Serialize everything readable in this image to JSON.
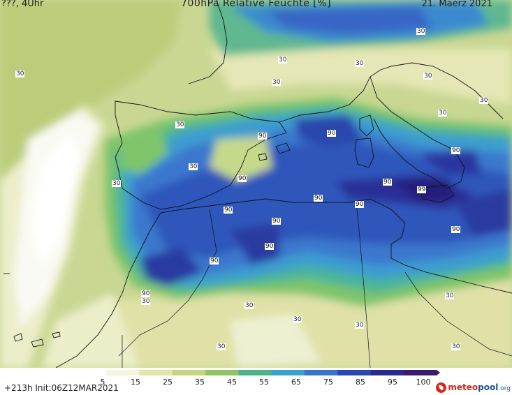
{
  "header": {
    "left": "???, 4Uhr",
    "title": "700hPa Relative Feuchte [%]",
    "date": "21. Maerz 2021"
  },
  "map": {
    "contour_labels": [
      {
        "text": "30"
      },
      {
        "text": "30"
      },
      {
        "text": "30"
      },
      {
        "text": "30"
      },
      {
        "text": "30"
      },
      {
        "text": "30"
      },
      {
        "text": "30"
      },
      {
        "text": "30"
      },
      {
        "text": "30"
      },
      {
        "text": "30"
      },
      {
        "text": "90"
      },
      {
        "text": "90"
      },
      {
        "text": "90"
      },
      {
        "text": "90"
      },
      {
        "text": "90"
      },
      {
        "text": "90"
      },
      {
        "text": "90"
      },
      {
        "text": "90"
      },
      {
        "text": "99"
      },
      {
        "text": "90"
      },
      {
        "text": "90"
      },
      {
        "text": "90"
      },
      {
        "text": "90"
      },
      {
        "text": "90"
      },
      {
        "text": "30"
      },
      {
        "text": "30"
      },
      {
        "text": "30"
      },
      {
        "text": "30"
      },
      {
        "text": "30"
      },
      {
        "text": "30"
      },
      {
        "text": "30"
      },
      {
        "text": "30"
      }
    ]
  },
  "legend": {
    "ticks": [
      "5",
      "15",
      "25",
      "35",
      "45",
      "55",
      "65",
      "75",
      "85",
      "95",
      "100"
    ],
    "colors": [
      "#ffffff",
      "#f5f3dc",
      "#e2e6a9",
      "#c4d77c",
      "#8ec55f",
      "#4ab486",
      "#39a3c7",
      "#3a74c9",
      "#2948b0",
      "#2a2a8c",
      "#3b1a6a"
    ]
  },
  "footer": {
    "run_info": "+213h  Init:06Z12MAR2021",
    "logo_meteo": "meteo",
    "logo_pool": "pool",
    "logo_org": ".org"
  }
}
